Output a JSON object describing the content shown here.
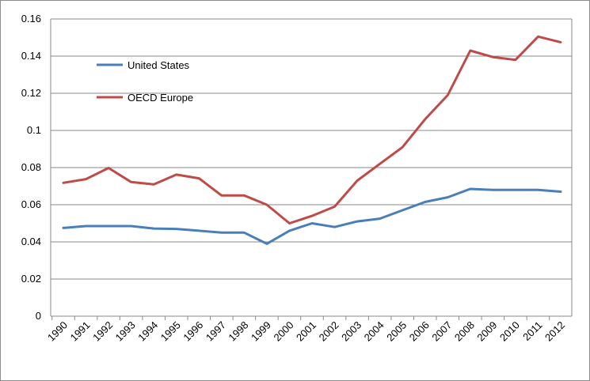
{
  "chart_data": {
    "type": "line",
    "title": "",
    "xlabel": "",
    "ylabel": "",
    "x": [
      "1990",
      "1991",
      "1992",
      "1993",
      "1994",
      "1995",
      "1996",
      "1997",
      "1998",
      "1999",
      "2000",
      "2001",
      "2002",
      "2003",
      "2004",
      "2005",
      "2006",
      "2007",
      "2008",
      "2009",
      "2010",
      "2011",
      "2012"
    ],
    "ylim": [
      0,
      0.16
    ],
    "yticks": [
      "0",
      "0.02",
      "0.04",
      "0.06",
      "0.08",
      "0.1",
      "0.12",
      "0.14",
      "0.16"
    ],
    "grid": true,
    "legend": "upper-left inside plot",
    "series": [
      {
        "name": "United States",
        "color": "#4a7ebb",
        "values": [
          0.0475,
          0.0485,
          0.0485,
          0.0485,
          0.0472,
          0.047,
          0.046,
          0.045,
          0.045,
          0.039,
          0.046,
          0.05,
          0.048,
          0.051,
          0.0525,
          0.057,
          0.0615,
          0.064,
          0.0685,
          0.068,
          0.068,
          0.068,
          0.067
        ]
      },
      {
        "name": "OECD Europe",
        "color": "#be4b48",
        "values": [
          0.0718,
          0.0738,
          0.0798,
          0.0722,
          0.071,
          0.0762,
          0.0742,
          0.065,
          0.065,
          0.06,
          0.05,
          0.054,
          0.059,
          0.073,
          0.082,
          0.091,
          0.106,
          0.119,
          0.143,
          0.1395,
          0.138,
          0.1505,
          0.1475
        ]
      }
    ]
  }
}
